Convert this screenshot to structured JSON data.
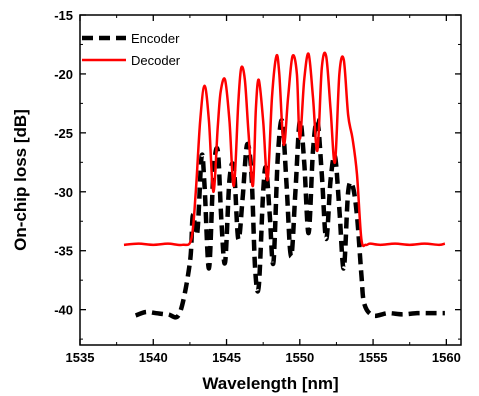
{
  "chart_data": {
    "type": "line",
    "title": "",
    "xlabel": "Wavelength [nm]",
    "ylabel": "On-chip loss [dB]",
    "xlim": [
      1535,
      1561
    ],
    "ylim": [
      -43,
      -15
    ],
    "x_ticks": [
      1535,
      1540,
      1545,
      1550,
      1555,
      1560
    ],
    "y_ticks": [
      -15,
      -20,
      -25,
      -30,
      -35,
      -40
    ],
    "grid": false,
    "legend_position": "top-left",
    "series": [
      {
        "name": "Encoder",
        "color": "#000000",
        "style": "dashed",
        "x": [
          1538.8,
          1539.5,
          1540.2,
          1541.0,
          1541.8,
          1542.5,
          1542.7,
          1543.0,
          1543.3,
          1543.5,
          1543.8,
          1544.1,
          1544.4,
          1544.65,
          1544.9,
          1545.2,
          1545.5,
          1545.8,
          1546.1,
          1546.4,
          1546.7,
          1546.95,
          1547.2,
          1547.5,
          1547.7,
          1547.95,
          1548.2,
          1548.5,
          1548.8,
          1549.1,
          1549.4,
          1549.7,
          1550.0,
          1550.3,
          1550.6,
          1550.9,
          1551.2,
          1551.5,
          1551.8,
          1552.1,
          1552.4,
          1552.7,
          1553.0,
          1553.3,
          1553.6,
          1553.9,
          1554.2,
          1554.4,
          1555.0,
          1556.0,
          1557.0,
          1558.0,
          1559.0,
          1559.9
        ],
        "y": [
          -40.5,
          -40.2,
          -40.3,
          -40.4,
          -40.3,
          -36.0,
          -32.0,
          -33.5,
          -27.0,
          -29.5,
          -36.5,
          -28.5,
          -26.5,
          -32.5,
          -36.0,
          -29.0,
          -28.0,
          -34.0,
          -30.5,
          -26.0,
          -28.5,
          -36.5,
          -38.0,
          -30.0,
          -28.0,
          -32.0,
          -36.0,
          -27.0,
          -24.0,
          -29.5,
          -35.5,
          -30.0,
          -24.0,
          -27.5,
          -33.5,
          -26.5,
          -24.0,
          -28.5,
          -34.0,
          -29.0,
          -27.0,
          -31.5,
          -36.5,
          -30.0,
          -29.5,
          -32.0,
          -37.0,
          -39.5,
          -40.5,
          -40.3,
          -40.4,
          -40.3,
          -40.3,
          -40.3
        ]
      },
      {
        "name": "Decoder",
        "color": "#ff0000",
        "style": "solid",
        "x": [
          1538.0,
          1539.0,
          1540.0,
          1541.0,
          1542.0,
          1542.6,
          1542.9,
          1543.2,
          1543.5,
          1543.8,
          1544.1,
          1544.4,
          1544.6,
          1544.9,
          1545.2,
          1545.5,
          1545.8,
          1546.0,
          1546.25,
          1546.5,
          1546.8,
          1547.0,
          1547.2,
          1547.5,
          1547.8,
          1548.1,
          1548.4,
          1548.6,
          1548.9,
          1549.2,
          1549.5,
          1549.8,
          1550.0,
          1550.3,
          1550.6,
          1550.9,
          1551.2,
          1551.5,
          1551.8,
          1552.1,
          1552.4,
          1552.7,
          1553.0,
          1553.3,
          1553.6,
          1553.9,
          1554.2,
          1554.5,
          1554.8,
          1555.5,
          1556.5,
          1557.5,
          1558.5,
          1559.5,
          1559.9
        ],
        "y": [
          -34.5,
          -34.4,
          -34.5,
          -34.4,
          -34.5,
          -34.0,
          -30.0,
          -24.0,
          -21.0,
          -24.0,
          -30.0,
          -24.5,
          -21.5,
          -20.5,
          -24.0,
          -29.5,
          -22.5,
          -19.5,
          -20.5,
          -25.0,
          -29.5,
          -23.0,
          -20.5,
          -24.0,
          -29.0,
          -22.0,
          -18.5,
          -20.0,
          -26.0,
          -22.0,
          -18.5,
          -20.0,
          -25.5,
          -20.5,
          -18.3,
          -22.0,
          -26.5,
          -19.5,
          -18.5,
          -23.0,
          -27.5,
          -20.0,
          -18.8,
          -23.5,
          -25.5,
          -28.5,
          -34.0,
          -34.5,
          -34.4,
          -34.5,
          -34.4,
          -34.5,
          -34.4,
          -34.5,
          -34.4
        ]
      }
    ]
  }
}
